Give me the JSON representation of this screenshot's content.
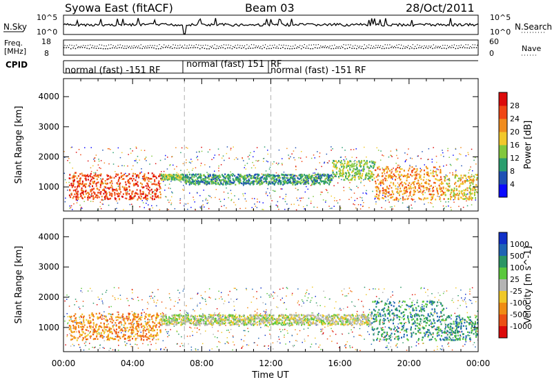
{
  "header": {
    "station": "Syowa East (fitACF)",
    "beam": "Beam 03",
    "date": "28/Oct/2011"
  },
  "status_panels": {
    "nsky_label": "N.Sky",
    "nsky_ticks": [
      "10^5",
      "10^0"
    ],
    "nsearch_label": "N.Search",
    "nsearch_ticks": [
      "10^5",
      "10^0"
    ],
    "freq_label_line1": "Freq.",
    "freq_label_line2": "[MHz]",
    "freq_ticks": [
      "18",
      "8"
    ],
    "nave_label": "Nave",
    "nave_ticks": [
      "60",
      "0"
    ],
    "cpid_label": "CPID",
    "cpid_segments": [
      {
        "label": "normal (fast) -151 RF",
        "start_hour": 0.0,
        "end_hour": 7.0
      },
      {
        "label": "normal (fast) 151",
        "start_hour": 7.0,
        "end_hour": 12.0
      },
      {
        "label": "RF",
        "start_hour": 12.0,
        "end_hour": 12.0
      },
      {
        "label": "normal (fast) -151 RF",
        "start_hour": 12.0,
        "end_hour": 24.0
      }
    ]
  },
  "chart_data": [
    {
      "type": "heatmap",
      "name": "power",
      "ylabel": "Slant Range [km]",
      "xlabel": "",
      "ylim": [
        200,
        4600
      ],
      "xlim": [
        0,
        24
      ],
      "yticks": [
        "1000",
        "2000",
        "3000",
        "4000"
      ],
      "colorbar": {
        "label": "Power [dB]",
        "ticks": [
          "4",
          "8",
          "12",
          "16",
          "20",
          "24",
          "28"
        ],
        "colors": [
          "#0a0aff",
          "#1e50b4",
          "#2a9e6e",
          "#82c83c",
          "#f2c82a",
          "#f08c1e",
          "#f04614",
          "#dc0a0a"
        ]
      },
      "bands": [
        {
          "start_hour": 0.3,
          "end_hour": 5.6,
          "range_km": [
            600,
            1500
          ],
          "power_db": 24
        },
        {
          "start_hour": 5.6,
          "end_hour": 7.0,
          "range_km": [
            1250,
            1450
          ],
          "power_db": 14
        },
        {
          "start_hour": 7.0,
          "end_hour": 15.5,
          "range_km": [
            1100,
            1450
          ],
          "power_db": 10
        },
        {
          "start_hour": 15.5,
          "end_hour": 18.0,
          "range_km": [
            1250,
            1900
          ],
          "power_db": 14
        },
        {
          "start_hour": 18.0,
          "end_hour": 22.0,
          "range_km": [
            600,
            1700
          ],
          "power_db": 22
        },
        {
          "start_hour": 22.0,
          "end_hour": 24.0,
          "range_km": [
            600,
            1450
          ],
          "power_db": 18
        }
      ]
    },
    {
      "type": "heatmap",
      "name": "velocity",
      "ylabel": "Slant Range [km]",
      "xlabel": "Time UT",
      "ylim": [
        200,
        4600
      ],
      "xlim": [
        0,
        24
      ],
      "yticks": [
        "1000",
        "2000",
        "3000",
        "4000"
      ],
      "colorbar": {
        "label": "Velocity [m s^-1]",
        "ticks": [
          "1000",
          "500",
          "100",
          "25",
          "-25",
          "-100",
          "-500",
          "-1000"
        ],
        "colors": [
          "#1030c8",
          "#1e64b4",
          "#2a9664",
          "#5ac83c",
          "#b4b4b4",
          "#f0c828",
          "#f08c14",
          "#ec5014",
          "#dc0a0a"
        ]
      },
      "bands": [
        {
          "start_hour": 0.3,
          "end_hour": 5.6,
          "range_km": [
            600,
            1500
          ],
          "velocity": -300
        },
        {
          "start_hour": 5.6,
          "end_hour": 17.8,
          "range_km": [
            1100,
            1450
          ],
          "velocity": 0
        },
        {
          "start_hour": 17.8,
          "end_hour": 22.0,
          "range_km": [
            600,
            1900
          ],
          "velocity": 150
        },
        {
          "start_hour": 22.0,
          "end_hour": 24.0,
          "range_km": [
            600,
            1450
          ],
          "velocity": 150
        }
      ]
    }
  ],
  "time_axis": {
    "ticks": [
      "00:00",
      "04:00",
      "08:00",
      "12:00",
      "16:00",
      "20:00",
      "00:00"
    ],
    "label": "Time UT",
    "dashed_markers_hour": [
      7.0,
      12.0
    ]
  }
}
